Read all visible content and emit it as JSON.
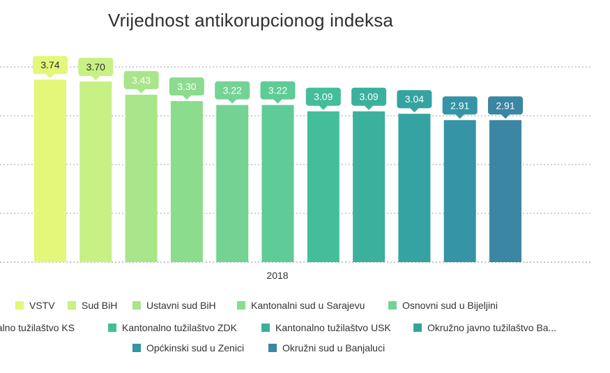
{
  "chart_data": {
    "type": "bar",
    "title": "Vrijednost antikorupcionog indeksa",
    "xlabel": "2018",
    "ylabel": "",
    "ylim": [
      0,
      4
    ],
    "grid": true,
    "legend_position": "bottom",
    "series": [
      {
        "name": "VSTV",
        "value": 3.74,
        "label": "3.74",
        "color": "#e4f77a"
      },
      {
        "name": "Sud BiH",
        "value": 3.7,
        "label": "3.70",
        "color": "#c7f085"
      },
      {
        "name": "Ustavni sud BiH",
        "value": 3.43,
        "label": "3.43",
        "color": "#a9e58a"
      },
      {
        "name": "Kantonalni sud u Sarajevu",
        "value": 3.3,
        "label": "3.30",
        "color": "#8cdc8e"
      },
      {
        "name": "Osnovni sud u Bijeljini",
        "value": 3.22,
        "label": "3.22",
        "color": "#74d393"
      },
      {
        "name": "nalno tužilaštvo KS",
        "value": 3.22,
        "label": "3.22",
        "color": "#5fcb97"
      },
      {
        "name": "Kantonalno tužilaštvo ZDK",
        "value": 3.09,
        "label": "3.09",
        "color": "#43bd9a"
      },
      {
        "name": "Kantonalno tužilaštvo USK",
        "value": 3.09,
        "label": "3.09",
        "color": "#3bb09d"
      },
      {
        "name": "Okružno javno tužilaštvo Ba...",
        "value": 3.04,
        "label": "3.04",
        "color": "#35a3a1"
      },
      {
        "name": "Općkinski sud u Zenici",
        "value": 2.91,
        "label": "2.91",
        "color": "#3594a5"
      },
      {
        "name": "Okružni sud u Banjaluci",
        "value": 2.91,
        "label": "2.91",
        "color": "#3b86a3"
      }
    ]
  }
}
